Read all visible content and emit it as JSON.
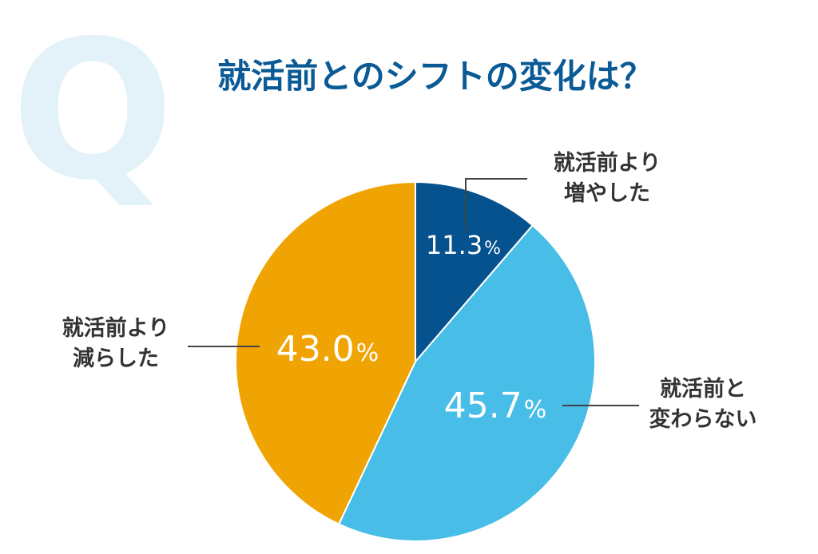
{
  "chart_data": {
    "type": "pie",
    "title": "就活前とのシフトの変化は？",
    "decorative_letter": "Q",
    "start_angle_deg": 0,
    "direction": "clockwise",
    "slices": [
      {
        "key": "increased",
        "label_lines": [
          "就活前より",
          "増やした"
        ],
        "value": 11.3,
        "value_text": "11.3",
        "unit": "%",
        "color": "#06528f"
      },
      {
        "key": "unchanged",
        "label_lines": [
          "就活前と",
          "変わらない"
        ],
        "value": 45.7,
        "value_text": "45.7",
        "unit": "%",
        "color": "#47bde8"
      },
      {
        "key": "decreased",
        "label_lines": [
          "就活前より",
          "減らした"
        ],
        "value": 43.0,
        "value_text": "43.0",
        "unit": "%",
        "color": "#f0a404"
      }
    ]
  }
}
